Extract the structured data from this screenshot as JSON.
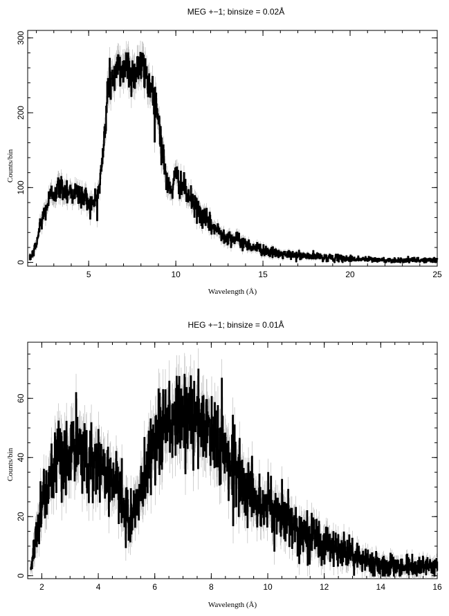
{
  "chart_data": [
    {
      "type": "line",
      "title": "MEG +−1; binsize = 0.02Å",
      "xlabel": "Wavelength (Å)",
      "ylabel": "Counts/bin",
      "xlim": [
        1.5,
        25
      ],
      "ylim": [
        -5,
        310
      ],
      "x_ticks": [
        5,
        10,
        15,
        20,
        25
      ],
      "y_ticks": [
        0,
        100,
        200,
        300
      ],
      "x_tick_labels": [
        "5",
        "10",
        "15",
        "20",
        "25"
      ],
      "y_tick_labels": [
        "0",
        "100",
        "200",
        "300"
      ],
      "grid": false,
      "has_error_bars": true,
      "series": [
        {
          "x": [
            1.6,
            1.8,
            2.0,
            2.2,
            2.5,
            2.8,
            3.0,
            3.3,
            3.6,
            4.0,
            4.3,
            4.6,
            4.9,
            5.2,
            5.4,
            5.6,
            5.8,
            5.9,
            6.0,
            6.1,
            6.3,
            6.6,
            6.9,
            7.2,
            7.5,
            7.8,
            8.1,
            8.4,
            8.7,
            9.0,
            9.2,
            9.35,
            9.5,
            9.8,
            10.0,
            10.3,
            10.6,
            11.0,
            11.5,
            12.0,
            12.5,
            13.0,
            13.5,
            14.0,
            14.5,
            15.0,
            15.5,
            16.0,
            17.0,
            18.0,
            19.0,
            20.0,
            21.0,
            22.0,
            23.0,
            24.0,
            25.0
          ],
          "y": [
            5,
            12,
            25,
            50,
            70,
            88,
            95,
            100,
            98,
            95,
            92,
            88,
            85,
            75,
            85,
            100,
            140,
            170,
            200,
            235,
            245,
            255,
            260,
            265,
            250,
            262,
            258,
            245,
            225,
            195,
            150,
            130,
            100,
            100,
            115,
            105,
            92,
            78,
            62,
            50,
            40,
            35,
            30,
            25,
            20,
            17,
            13,
            11,
            9,
            8,
            6,
            5,
            4,
            3,
            3,
            3,
            3
          ]
        }
      ]
    },
    {
      "type": "line",
      "title": "HEG +−1; binsize = 0.01Å",
      "xlabel": "Wavelength (Å)",
      "ylabel": "Counts/bin",
      "xlim": [
        1.5,
        16
      ],
      "ylim": [
        -1,
        79
      ],
      "x_ticks": [
        2,
        4,
        6,
        8,
        10,
        12,
        14,
        16
      ],
      "y_ticks": [
        0,
        20,
        40,
        60
      ],
      "x_tick_labels": [
        "2",
        "4",
        "6",
        "8",
        "10",
        "12",
        "14",
        "16"
      ],
      "y_tick_labels": [
        "0",
        "20",
        "40",
        "60"
      ],
      "grid": false,
      "has_error_bars": true,
      "series": [
        {
          "x": [
            1.6,
            1.7,
            1.8,
            2.0,
            2.3,
            2.6,
            3.0,
            3.3,
            3.6,
            4.0,
            4.3,
            4.6,
            4.8,
            5.0,
            5.2,
            5.4,
            5.6,
            5.8,
            6.0,
            6.3,
            6.6,
            7.0,
            7.4,
            7.8,
            8.2,
            8.6,
            9.0,
            9.4,
            9.8,
            10.2,
            10.6,
            11.0,
            11.5,
            12.0,
            12.5,
            13.0,
            13.5,
            14.0,
            14.5,
            15.0,
            15.5,
            16.0
          ],
          "y": [
            2,
            8,
            15,
            25,
            32,
            38,
            42,
            42,
            40,
            38,
            35,
            32,
            25,
            20,
            21,
            24,
            32,
            40,
            48,
            50,
            52,
            54,
            52,
            50,
            46,
            40,
            34,
            27,
            24,
            22,
            20,
            16,
            14,
            11,
            9,
            7,
            5,
            4,
            3,
            3,
            3,
            3
          ]
        }
      ]
    }
  ]
}
